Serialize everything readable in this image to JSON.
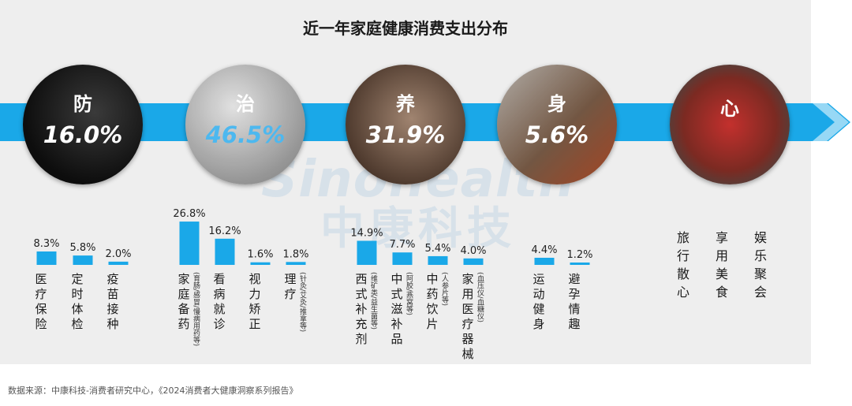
{
  "title": "近一年家庭健康消费支出分布",
  "source": "数据来源：中康科技-消费者研究中心，《2024消费者大健康洞察系列报告》",
  "watermark": {
    "en": "Sinohealth",
    "cn": "中康科技"
  },
  "colors": {
    "bar": "#1aa8e8",
    "band": "#1aa8e8",
    "highlight": "#4db8ef",
    "panel": "#eeeeee"
  },
  "chart_data": {
    "type": "bar",
    "title": "近一年家庭健康消费支出分布",
    "categories_groups": [
      {
        "name": "防",
        "share": "16.0%",
        "items": [
          {
            "label": "医疗保险",
            "note": "",
            "value": 8.3,
            "value_label": "8.3%"
          },
          {
            "label": "定时体检",
            "note": "",
            "value": 5.8,
            "value_label": "5.8%"
          },
          {
            "label": "疫苗接种",
            "note": "",
            "value": 2.0,
            "value_label": "2.0%"
          }
        ]
      },
      {
        "name": "治",
        "share": "46.5%",
        "items": [
          {
            "label": "家庭备药",
            "note": "(育肠/感冒/慢病用药等)",
            "value": 26.8,
            "value_label": "26.8%"
          },
          {
            "label": "看病就诊",
            "note": "",
            "value": 16.2,
            "value_label": "16.2%"
          },
          {
            "label": "视力矫正",
            "note": "",
            "value": 1.6,
            "value_label": "1.6%"
          },
          {
            "label": "理疗",
            "note": "(针灸/艾灸/推拿等)",
            "value": 1.8,
            "value_label": "1.8%"
          }
        ]
      },
      {
        "name": "养",
        "share": "31.9%",
        "items": [
          {
            "label": "西式补充剂",
            "note": "(维矿类/益生菌等)",
            "value": 14.9,
            "value_label": "14.9%"
          },
          {
            "label": "中式滋补品",
            "note": "(阿胶/燕窝等)",
            "value": 7.7,
            "value_label": "7.7%"
          },
          {
            "label": "中药饮片",
            "note": "(人参片等)",
            "value": 5.4,
            "value_label": "5.4%"
          },
          {
            "label": "家用医疗器械",
            "note": "(血压仪/血糖仪)",
            "value": 4.0,
            "value_label": "4.0%"
          }
        ]
      },
      {
        "name": "身",
        "share": "5.6%",
        "items": [
          {
            "label": "运动健身",
            "note": "",
            "value": 4.4,
            "value_label": "4.4%"
          },
          {
            "label": "避孕情趣",
            "note": "",
            "value": 1.2,
            "value_label": "1.2%"
          }
        ]
      },
      {
        "name": "心",
        "share": "",
        "items": [
          {
            "label": "旅行散心"
          },
          {
            "label": "享用美食"
          },
          {
            "label": "娱乐聚会"
          }
        ]
      }
    ]
  }
}
